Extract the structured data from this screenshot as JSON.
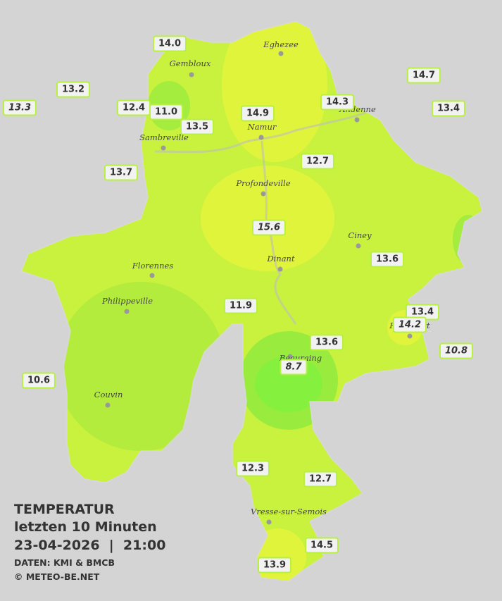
{
  "caption": {
    "title": "TEMPERATUR",
    "period": "letzten 10 Minuten",
    "datetime": "23-04-2026  |  21:00",
    "source": "DATEN: KMI & BMCB",
    "copyright": "© METEO-BE.NET"
  },
  "cities": [
    "Eghezee",
    "Gembloux",
    "Andenne",
    "Namur",
    "Sambreville",
    "Profondeville",
    "Ciney",
    "Dinant",
    "Florennes",
    "Philippeville",
    "Rochefort",
    "Beauraing",
    "Couvin",
    "Vresse-sur-Semois"
  ],
  "stations": [
    "14.0",
    "13.2",
    "13.3",
    "12.4",
    "11.0",
    "13.5",
    "14.9",
    "14.3",
    "14.7",
    "13.4",
    "13.7",
    "12.7",
    "15.6",
    "13.6",
    "11.9",
    "13.4",
    "14.2",
    "13.6",
    "10.8",
    "8.7",
    "10.6",
    "12.3",
    "12.7",
    "14.5",
    "13.9"
  ]
}
